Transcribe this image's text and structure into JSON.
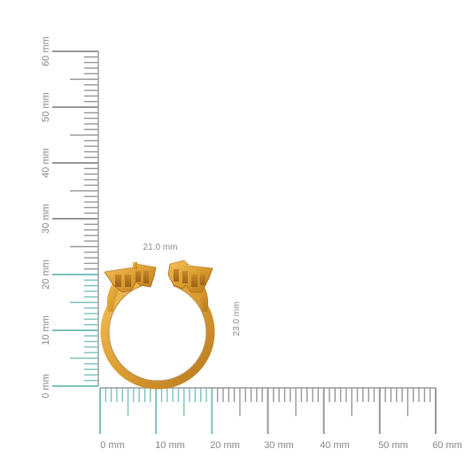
{
  "rulers": {
    "vertical_labels": [
      "0 mm",
      "10 mm",
      "20 mm",
      "30 mm",
      "40 mm",
      "50 mm",
      "60 mm"
    ],
    "horizontal_labels": [
      "0 mm",
      "10 mm",
      "20 mm",
      "30 mm",
      "40 mm",
      "50 mm",
      "60 mm"
    ],
    "highlight_color": "#7ec3c0",
    "tick_color": "#9a9a9a"
  },
  "dimensions": {
    "width_label": "21.0 mm",
    "height_label": "23.0 mm"
  },
  "product": {
    "metal_color": "#e0a53a"
  }
}
